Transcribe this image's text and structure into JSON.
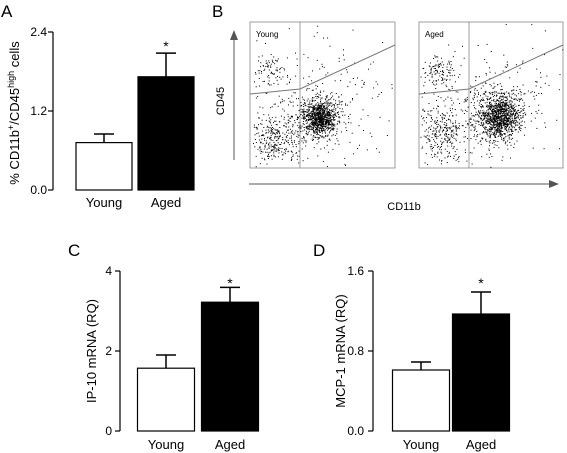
{
  "panels": {
    "A": {
      "letter": "A",
      "ylabel_parts": [
        "% CD11b",
        "+",
        "/CD45",
        "high",
        " cells"
      ],
      "yticks": [
        "0.0",
        "1.2",
        "2.4"
      ],
      "star": "*"
    },
    "B": {
      "letter": "B",
      "ylabel": "CD45",
      "xlabel": "CD11b",
      "plots": [
        {
          "label": "Young"
        },
        {
          "label": "Aged"
        }
      ]
    },
    "C": {
      "letter": "C",
      "ylabel": "IP-10 mRNA (RQ)",
      "yticks": [
        "0",
        "2",
        "4"
      ],
      "star": "*"
    },
    "D": {
      "letter": "D",
      "ylabel": "MCP-1 mRNA (RQ)",
      "yticks": [
        "0.0",
        "0.8",
        "1.6"
      ],
      "star": "*"
    }
  },
  "chart_data": [
    {
      "panel": "A",
      "type": "bar",
      "categories": [
        "Young",
        "Aged"
      ],
      "values": [
        0.72,
        1.72
      ],
      "errors": [
        0.13,
        0.36
      ],
      "colors": [
        "#ffffff",
        "#000000"
      ],
      "ylabel": "% CD11b+/CD45high cells",
      "ylim": [
        0,
        2.4
      ],
      "significance": "*"
    },
    {
      "panel": "B",
      "type": "scatter",
      "title": "",
      "xlabel": "CD11b",
      "ylabel": "CD45",
      "series": [
        {
          "name": "Young"
        },
        {
          "name": "Aged"
        }
      ]
    },
    {
      "panel": "C",
      "type": "bar",
      "categories": [
        "Young",
        "Aged"
      ],
      "values": [
        1.57,
        3.22
      ],
      "errors": [
        0.33,
        0.37
      ],
      "colors": [
        "#ffffff",
        "#000000"
      ],
      "ylabel": "IP-10 mRNA (RQ)",
      "ylim": [
        0,
        4
      ],
      "significance": "*"
    },
    {
      "panel": "D",
      "type": "bar",
      "categories": [
        "Young",
        "Aged"
      ],
      "values": [
        0.61,
        1.17
      ],
      "errors": [
        0.08,
        0.22
      ],
      "colors": [
        "#ffffff",
        "#000000"
      ],
      "ylabel": "MCP-1 mRNA (RQ)",
      "ylim": [
        0,
        1.6
      ],
      "significance": "*"
    }
  ]
}
